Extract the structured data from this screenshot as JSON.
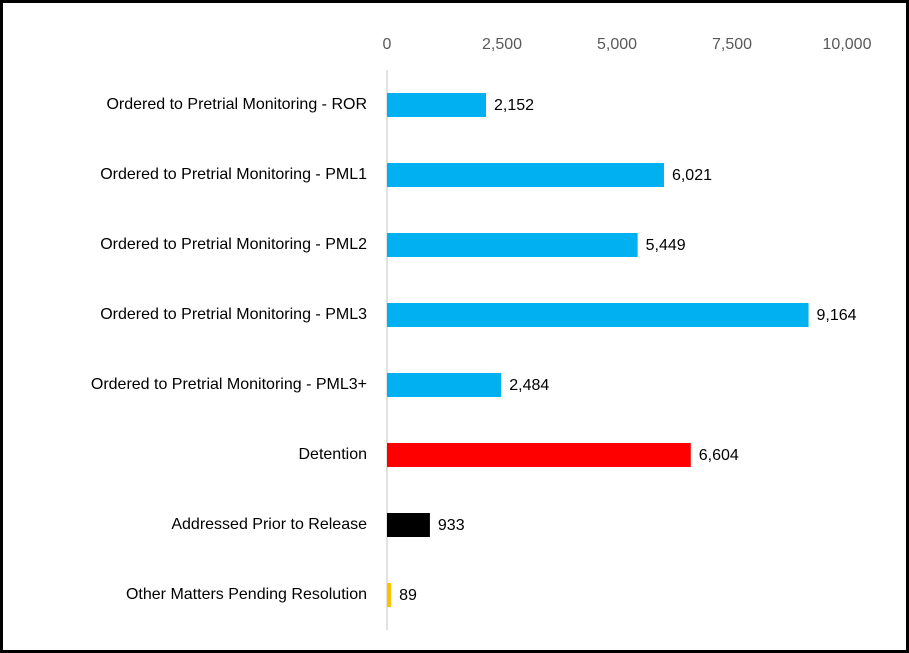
{
  "chart_data": {
    "type": "bar",
    "orientation": "horizontal",
    "categories": [
      "Ordered to Pretrial Monitoring - ROR",
      "Ordered to Pretrial Monitoring - PML1",
      "Ordered to Pretrial Monitoring - PML2",
      "Ordered to Pretrial Monitoring - PML3",
      "Ordered to Pretrial Monitoring - PML3+",
      "Detention",
      "Addressed Prior to Release",
      "Other Matters Pending Resolution"
    ],
    "values": [
      2152,
      6021,
      5449,
      9164,
      2484,
      6604,
      933,
      89
    ],
    "value_labels": [
      "2,152",
      "6,021",
      "5,449",
      "9,164",
      "2,484",
      "6,604",
      "933",
      "89"
    ],
    "colors": [
      "#00b0f0",
      "#00b0f0",
      "#00b0f0",
      "#00b0f0",
      "#00b0f0",
      "#ff0000",
      "#000000",
      "#ffc000"
    ],
    "xlim": [
      0,
      10000
    ],
    "xticks": [
      0,
      {
        "value": 2500,
        "label": "2,500"
      },
      {
        "value": 5000,
        "label": "5,000"
      },
      {
        "value": 7500,
        "label": "7,500"
      },
      {
        "value": 10000,
        "label": "10,000"
      }
    ],
    "grid": false
  }
}
